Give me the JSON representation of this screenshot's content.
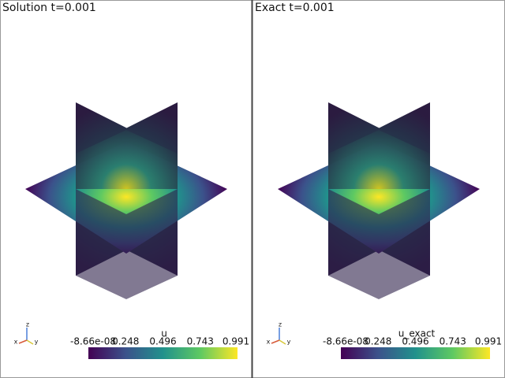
{
  "panels": [
    {
      "title": "Solution t=0.001",
      "colorbar": {
        "label": "u",
        "ticks": [
          "-8.66e-08",
          "0.248",
          "0.496",
          "0.743",
          "0.991"
        ]
      },
      "axes": [
        "x",
        "y",
        "z"
      ]
    },
    {
      "title": "Exact t=0.001",
      "colorbar": {
        "label": "u_exact",
        "ticks": [
          "-8.66e-08",
          "0.248",
          "0.496",
          "0.743",
          "0.991"
        ]
      },
      "axes": [
        "x",
        "y",
        "z"
      ]
    }
  ]
}
